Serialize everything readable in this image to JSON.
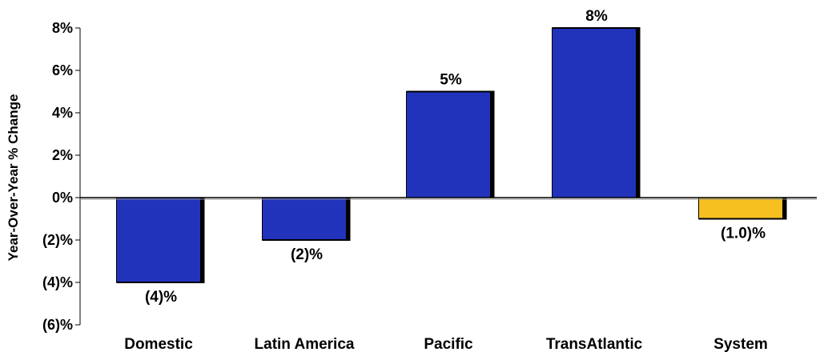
{
  "chart_data": {
    "type": "bar",
    "title": "",
    "xlabel": "",
    "ylabel": "Year-Over-Year % Change",
    "ylim": [
      -6,
      8
    ],
    "yticks": [
      {
        "value": 8,
        "label": "8%"
      },
      {
        "value": 6,
        "label": "6%"
      },
      {
        "value": 4,
        "label": "4%"
      },
      {
        "value": 2,
        "label": "2%"
      },
      {
        "value": 0,
        "label": "0%"
      },
      {
        "value": -2,
        "label": "(2)%"
      },
      {
        "value": -4,
        "label": "(4)%"
      },
      {
        "value": -6,
        "label": "(6)%"
      }
    ],
    "categories": [
      "Domestic",
      "Latin America",
      "Pacific",
      "TransAtlantic",
      "System"
    ],
    "values": [
      -4,
      -2,
      5,
      8,
      -1.0
    ],
    "data_labels": [
      "(4)%",
      "(2)%",
      "5%",
      "8%",
      "(1.0)%"
    ],
    "colors": [
      "#2233bb",
      "#2233bb",
      "#2233bb",
      "#2233bb",
      "#f5c020"
    ],
    "grid": false,
    "legend": "none"
  }
}
